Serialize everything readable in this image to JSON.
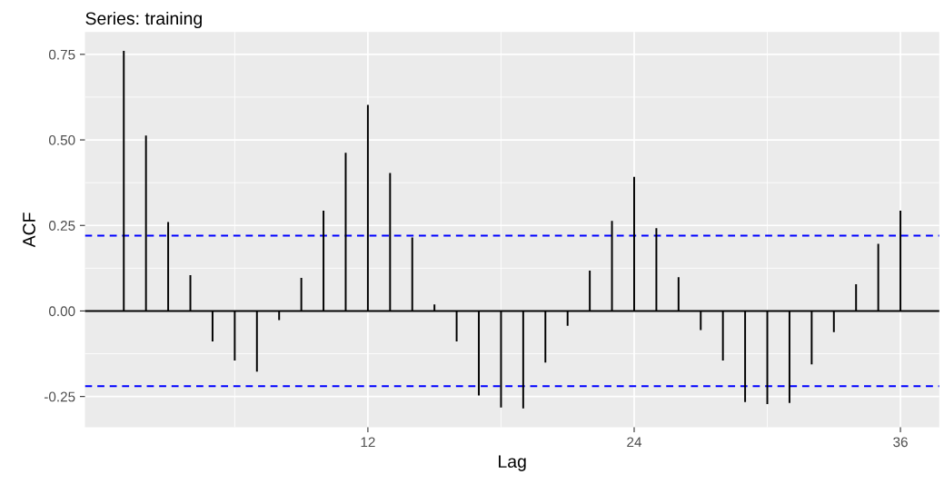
{
  "chart_data": {
    "type": "bar",
    "title": "Series: training",
    "xlabel": "Lag",
    "ylabel": "ACF",
    "x": [
      1,
      2,
      3,
      4,
      5,
      6,
      7,
      8,
      9,
      10,
      11,
      12,
      13,
      14,
      15,
      16,
      17,
      18,
      19,
      20,
      21,
      22,
      23,
      24,
      25,
      26,
      27,
      28,
      29,
      30,
      31,
      32,
      33,
      34,
      35,
      36
    ],
    "values": [
      0.76,
      0.513,
      0.26,
      0.105,
      -0.089,
      -0.145,
      -0.177,
      -0.027,
      0.097,
      0.293,
      0.462,
      0.602,
      0.403,
      0.215,
      0.019,
      -0.089,
      -0.247,
      -0.282,
      -0.285,
      -0.151,
      -0.043,
      0.118,
      0.263,
      0.392,
      0.242,
      0.099,
      -0.056,
      -0.145,
      -0.266,
      -0.272,
      -0.269,
      -0.156,
      -0.062,
      0.078,
      0.196,
      0.293
    ],
    "color": "#000000",
    "xlim": [
      -0.75,
      37.75
    ],
    "xticks": [
      12,
      24,
      36
    ],
    "ylim": [
      -0.34,
      0.815
    ],
    "yticks": [
      {
        "value": -0.25,
        "label": "-0.25"
      },
      {
        "value": 0,
        "label": "0.00"
      },
      {
        "value": 0.25,
        "label": "0.25"
      },
      {
        "value": 0.5,
        "label": "0.50"
      },
      {
        "value": 0.75,
        "label": "0.75"
      }
    ],
    "ref_lines": [
      {
        "axis": "y",
        "value": 0,
        "color": "#000000",
        "line_style": "solid"
      },
      {
        "axis": "y",
        "value": 0.22,
        "color": "#0000ff",
        "line_style": "dashed"
      },
      {
        "axis": "y",
        "value": -0.22,
        "color": "#0000ff",
        "line_style": "dashed"
      }
    ],
    "grid": true
  }
}
